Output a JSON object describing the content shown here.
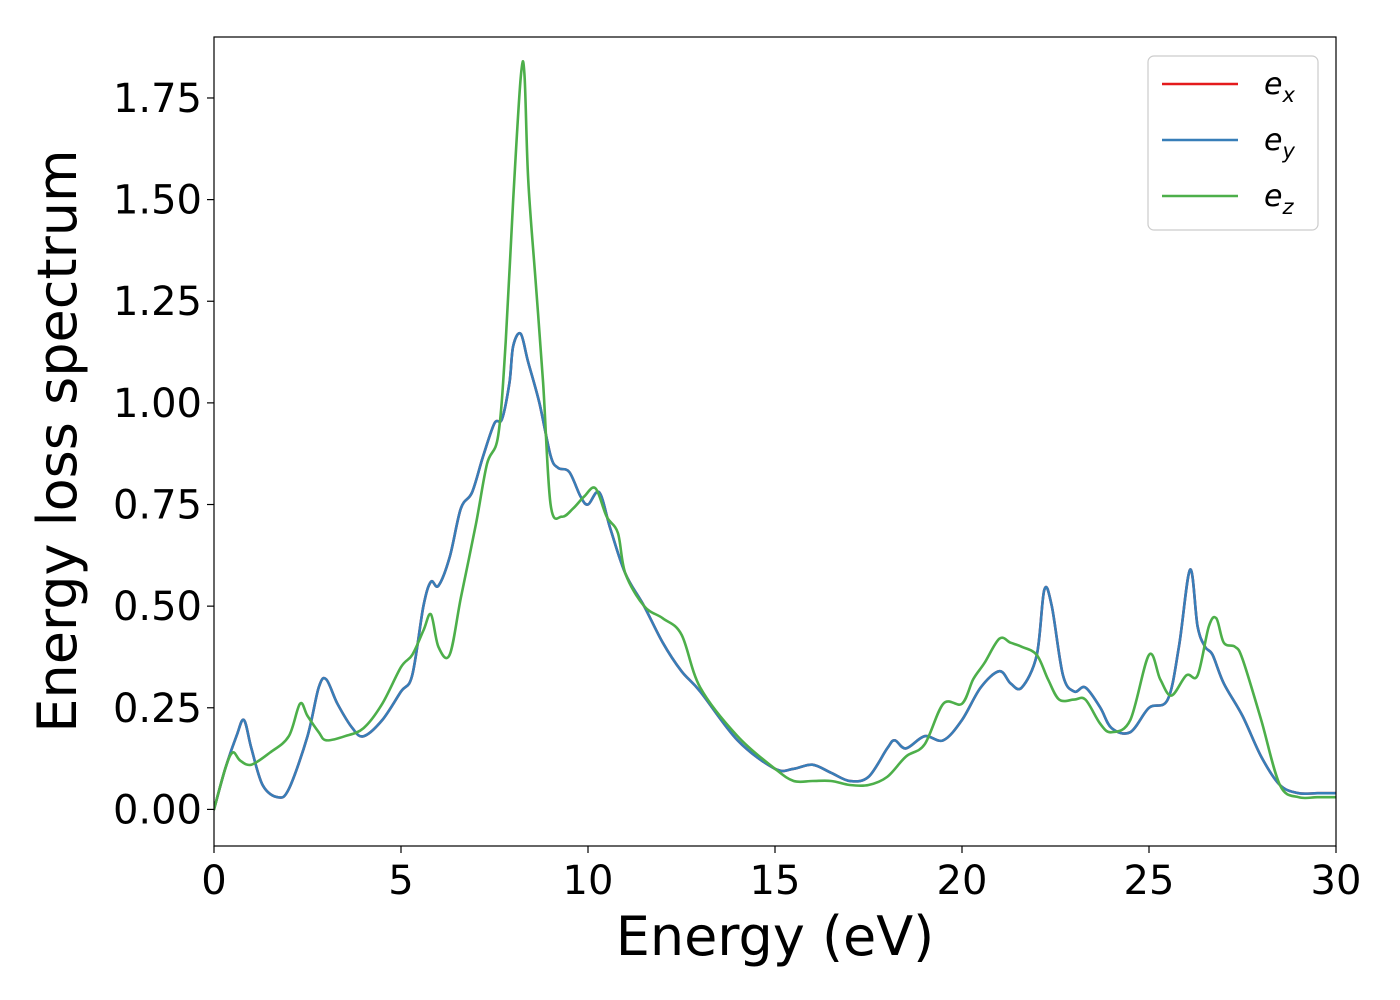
{
  "chart_data": {
    "type": "line",
    "xlabel": "Energy (eV)",
    "ylabel": "Energy loss spectrum",
    "xlim": [
      0,
      30
    ],
    "ylim": [
      -0.09,
      1.9
    ],
    "xticks": [
      "0",
      "5",
      "10",
      "15",
      "20",
      "25",
      "30"
    ],
    "yticks": [
      "0.00",
      "0.25",
      "0.50",
      "0.75",
      "1.00",
      "1.25",
      "1.50",
      "1.75"
    ],
    "grid": false,
    "legend_position": "top-right",
    "series": [
      {
        "name_base": "e",
        "name_sub": "x",
        "color": "#e41a1c",
        "x": [
          0,
          0.3,
          0.6,
          0.8,
          1.0,
          1.3,
          1.7,
          2.0,
          2.5,
          2.8,
          3.0,
          3.3,
          3.7,
          4.0,
          4.5,
          5.0,
          5.3,
          5.6,
          5.8,
          6.0,
          6.3,
          6.6,
          6.9,
          7.2,
          7.5,
          7.7,
          7.9,
          8.0,
          8.2,
          8.4,
          8.7,
          9.0,
          9.2,
          9.5,
          9.8,
          10.0,
          10.3,
          10.6,
          11.0,
          11.5,
          12.0,
          12.5,
          13.0,
          14.0,
          15.0,
          15.5,
          16.0,
          16.5,
          17.0,
          17.5,
          18.0,
          18.2,
          18.5,
          19.0,
          19.5,
          20.0,
          20.5,
          21.0,
          21.3,
          21.6,
          22.0,
          22.2,
          22.4,
          22.7,
          23.0,
          23.3,
          23.7,
          24.0,
          24.5,
          25.0,
          25.5,
          25.8,
          26.1,
          26.3,
          26.5,
          26.7,
          27.0,
          27.5,
          28.0,
          28.5,
          29.0,
          29.5,
          30.0
        ],
        "values": [
          0.0,
          0.1,
          0.18,
          0.22,
          0.15,
          0.06,
          0.03,
          0.05,
          0.18,
          0.3,
          0.32,
          0.26,
          0.2,
          0.18,
          0.22,
          0.29,
          0.33,
          0.5,
          0.56,
          0.55,
          0.62,
          0.74,
          0.78,
          0.87,
          0.95,
          0.96,
          1.05,
          1.14,
          1.17,
          1.1,
          1.0,
          0.87,
          0.84,
          0.83,
          0.77,
          0.75,
          0.78,
          0.69,
          0.58,
          0.5,
          0.41,
          0.34,
          0.29,
          0.17,
          0.1,
          0.1,
          0.11,
          0.09,
          0.07,
          0.08,
          0.15,
          0.17,
          0.15,
          0.18,
          0.17,
          0.22,
          0.3,
          0.34,
          0.31,
          0.3,
          0.38,
          0.54,
          0.5,
          0.33,
          0.29,
          0.3,
          0.25,
          0.2,
          0.19,
          0.25,
          0.27,
          0.4,
          0.59,
          0.45,
          0.4,
          0.38,
          0.31,
          0.23,
          0.13,
          0.06,
          0.04,
          0.04,
          0.04
        ]
      },
      {
        "name_base": "e",
        "name_sub": "y",
        "color": "#377eb8",
        "x": [
          0,
          0.3,
          0.6,
          0.8,
          1.0,
          1.3,
          1.7,
          2.0,
          2.5,
          2.8,
          3.0,
          3.3,
          3.7,
          4.0,
          4.5,
          5.0,
          5.3,
          5.6,
          5.8,
          6.0,
          6.3,
          6.6,
          6.9,
          7.2,
          7.5,
          7.7,
          7.9,
          8.0,
          8.2,
          8.4,
          8.7,
          9.0,
          9.2,
          9.5,
          9.8,
          10.0,
          10.3,
          10.6,
          11.0,
          11.5,
          12.0,
          12.5,
          13.0,
          14.0,
          15.0,
          15.5,
          16.0,
          16.5,
          17.0,
          17.5,
          18.0,
          18.2,
          18.5,
          19.0,
          19.5,
          20.0,
          20.5,
          21.0,
          21.3,
          21.6,
          22.0,
          22.2,
          22.4,
          22.7,
          23.0,
          23.3,
          23.7,
          24.0,
          24.5,
          25.0,
          25.5,
          25.8,
          26.1,
          26.3,
          26.5,
          26.7,
          27.0,
          27.5,
          28.0,
          28.5,
          29.0,
          29.5,
          30.0
        ],
        "values": [
          0.0,
          0.1,
          0.18,
          0.22,
          0.15,
          0.06,
          0.03,
          0.05,
          0.18,
          0.3,
          0.32,
          0.26,
          0.2,
          0.18,
          0.22,
          0.29,
          0.33,
          0.5,
          0.56,
          0.55,
          0.62,
          0.74,
          0.78,
          0.87,
          0.95,
          0.96,
          1.05,
          1.14,
          1.17,
          1.1,
          1.0,
          0.87,
          0.84,
          0.83,
          0.77,
          0.75,
          0.78,
          0.69,
          0.58,
          0.5,
          0.41,
          0.34,
          0.29,
          0.17,
          0.1,
          0.1,
          0.11,
          0.09,
          0.07,
          0.08,
          0.15,
          0.17,
          0.15,
          0.18,
          0.17,
          0.22,
          0.3,
          0.34,
          0.31,
          0.3,
          0.38,
          0.54,
          0.5,
          0.33,
          0.29,
          0.3,
          0.25,
          0.2,
          0.19,
          0.25,
          0.27,
          0.4,
          0.59,
          0.45,
          0.4,
          0.38,
          0.31,
          0.23,
          0.13,
          0.06,
          0.04,
          0.04,
          0.04
        ]
      },
      {
        "name_base": "e",
        "name_sub": "z",
        "color": "#4daf4a",
        "x": [
          0,
          0.3,
          0.5,
          0.7,
          1.0,
          1.5,
          2.0,
          2.3,
          2.5,
          2.8,
          3.0,
          3.5,
          4.0,
          4.5,
          5.0,
          5.3,
          5.6,
          5.8,
          6.0,
          6.3,
          6.6,
          7.0,
          7.3,
          7.6,
          7.8,
          8.0,
          8.2,
          8.3,
          8.4,
          8.6,
          8.8,
          9.0,
          9.3,
          9.6,
          9.9,
          10.2,
          10.5,
          10.8,
          11.0,
          11.5,
          12.0,
          12.5,
          13.0,
          14.0,
          15.0,
          15.5,
          16.0,
          16.5,
          17.0,
          17.5,
          18.0,
          18.5,
          19.0,
          19.5,
          20.0,
          20.3,
          20.6,
          21.0,
          21.3,
          21.6,
          22.0,
          22.3,
          22.6,
          23.0,
          23.3,
          23.7,
          24.0,
          24.5,
          25.0,
          25.3,
          25.6,
          26.0,
          26.3,
          26.6,
          26.8,
          27.0,
          27.3,
          27.5,
          28.0,
          28.5,
          29.0,
          29.5,
          30.0
        ],
        "values": [
          0.0,
          0.1,
          0.14,
          0.12,
          0.11,
          0.14,
          0.18,
          0.26,
          0.23,
          0.19,
          0.17,
          0.18,
          0.2,
          0.26,
          0.35,
          0.38,
          0.44,
          0.48,
          0.4,
          0.38,
          0.52,
          0.7,
          0.85,
          0.92,
          1.15,
          1.5,
          1.8,
          1.81,
          1.55,
          1.3,
          1.05,
          0.75,
          0.72,
          0.74,
          0.77,
          0.79,
          0.72,
          0.68,
          0.58,
          0.5,
          0.47,
          0.43,
          0.3,
          0.18,
          0.1,
          0.07,
          0.07,
          0.07,
          0.06,
          0.06,
          0.08,
          0.13,
          0.16,
          0.26,
          0.26,
          0.32,
          0.36,
          0.42,
          0.41,
          0.4,
          0.38,
          0.32,
          0.27,
          0.27,
          0.27,
          0.21,
          0.19,
          0.22,
          0.38,
          0.32,
          0.28,
          0.33,
          0.33,
          0.45,
          0.47,
          0.41,
          0.4,
          0.37,
          0.22,
          0.06,
          0.03,
          0.03,
          0.03
        ]
      }
    ]
  }
}
